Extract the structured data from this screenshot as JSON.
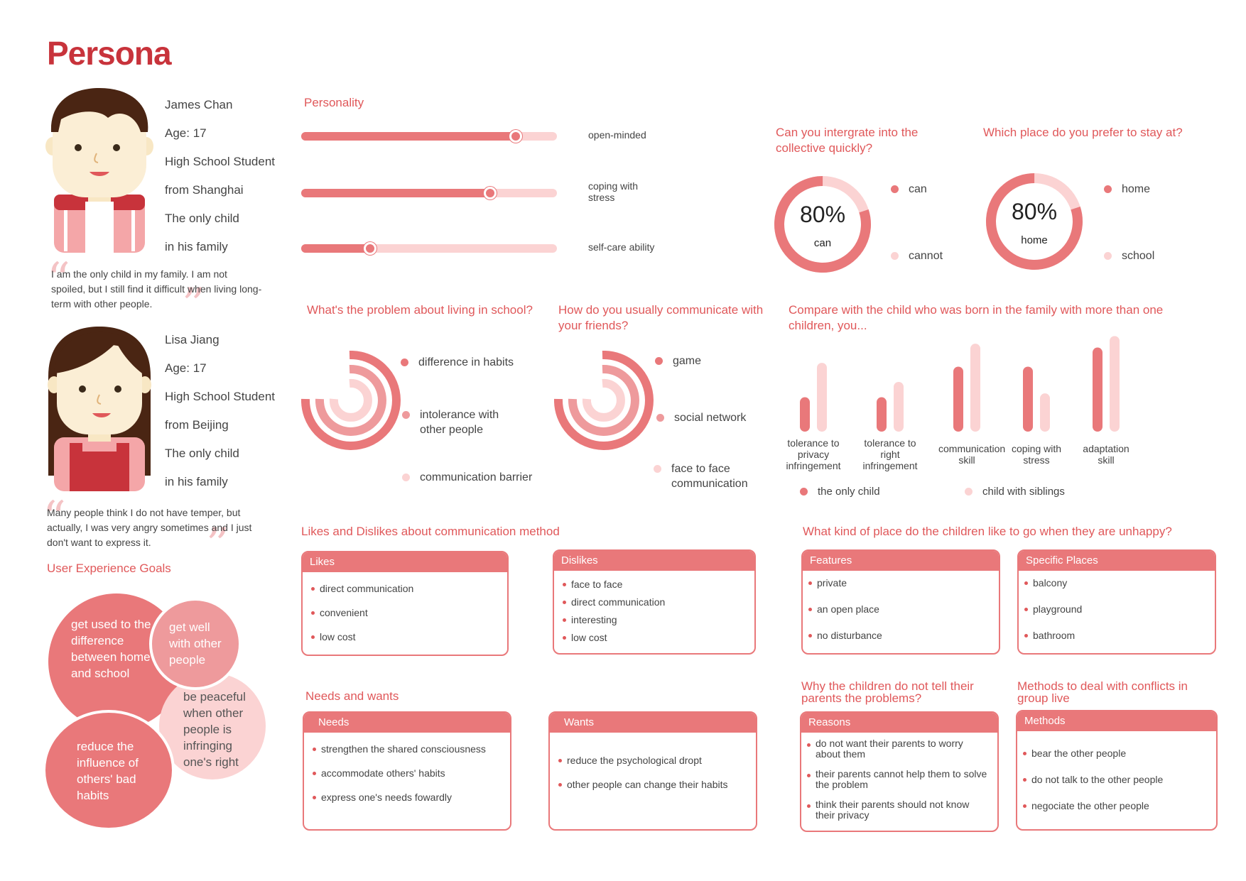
{
  "title": "Persona",
  "colors": {
    "primary": "#e9787a",
    "light": "#fbd3d3",
    "dark": "#c8333b",
    "text": "#444444"
  },
  "personas": [
    {
      "lines": [
        "James Chan",
        "Age: 17",
        "High School Student",
        "from Shanghai",
        "The only child",
        "in his family"
      ],
      "quote": "I am the only child in my family. I am not spoiled, but I still find it difficult when living long-term with other people."
    },
    {
      "lines": [
        "Lisa Jiang",
        "Age: 17",
        "High School Student",
        "from Beijing",
        "The only child",
        "in his family"
      ],
      "quote": "Many people think I do not have temper, but actually, I was very angry sometimes and I just don't want to express it."
    }
  ],
  "ux_goals": {
    "title": "User Experience Goals",
    "bubbles": [
      "get used to the difference between home and school",
      "get well with other people",
      "be peaceful when other people is infringing one's right",
      "reduce the influence of others' bad habits"
    ]
  },
  "personality": {
    "title": "Personality",
    "sliders": [
      {
        "label": "open-minded",
        "value": 0.84
      },
      {
        "label": "coping with stress",
        "value": 0.74
      },
      {
        "label": "self-care ability",
        "value": 0.27
      }
    ]
  },
  "donuts": [
    {
      "question": "Can you intergrate into the collective quickly?",
      "percent": "80%",
      "center_label": "can",
      "legend": [
        "can",
        "cannot"
      ]
    },
    {
      "question": "Which place do you prefer to stay at?",
      "percent": "80%",
      "center_label": "home",
      "legend": [
        "home",
        "school"
      ]
    }
  ],
  "arcs": [
    {
      "question": "What's the problem about living in school?",
      "legend": [
        "difference in habits",
        "intolerance with other people",
        "communication barrier"
      ]
    },
    {
      "question": "How do you usually communicate with your friends?",
      "legend": [
        "game",
        "social network",
        "face to face communication"
      ]
    }
  ],
  "compare": {
    "question": "Compare with the child who was born in the family with more than one children, you...",
    "legend": [
      "the only child",
      "child with siblings"
    ]
  },
  "chart_data": {
    "type": "bar",
    "title": "Compare with the child who was born in the family with more than one children, you...",
    "categories": [
      "tolerance to privacy infringement",
      "tolerance to right infringement",
      "communication skill",
      "coping with stress",
      "adaptation skill"
    ],
    "series": [
      {
        "name": "the only child",
        "values": [
          4.5,
          4.5,
          8.5,
          8.5,
          11
        ]
      },
      {
        "name": "child with siblings",
        "values": [
          9,
          6.5,
          11.5,
          5,
          12.5
        ]
      }
    ],
    "ylim": [
      0,
      13
    ],
    "legend": "bottom"
  },
  "likes_dislikes": {
    "title": "Likes and Dislikes about communication method",
    "likes": {
      "head": "Likes",
      "items": [
        "direct communication",
        "convenient",
        "low cost"
      ]
    },
    "dislikes": {
      "head": "Dislikes",
      "items": [
        "face to face",
        "direct communication",
        "interesting",
        "low cost"
      ]
    }
  },
  "needs_wants": {
    "title": "Needs and wants",
    "needs": {
      "head": "Needs",
      "items": [
        "strengthen the shared consciousness",
        "accommodate others' habits",
        "express one's needs fowardly"
      ]
    },
    "wants": {
      "head": "Wants",
      "items": [
        "reduce the psychological dropt",
        "other people can change their habits"
      ]
    }
  },
  "places": {
    "title": "What kind of place do the children like to go when they are unhappy?",
    "features": {
      "head": "Features",
      "items": [
        "private",
        "an open place",
        "no disturbance"
      ]
    },
    "specific": {
      "head": "Specific Places",
      "items": [
        "balcony",
        "playground",
        "bathroom"
      ]
    }
  },
  "reasons": {
    "title": "Why the children do not tell their parents the problems?",
    "head": "Reasons",
    "items": [
      "do not want their parents to worry about them",
      "their parents cannot help them to solve the problem",
      "think their parents should not know their privacy"
    ]
  },
  "methods": {
    "title": "Methods to deal with conflicts in group live",
    "head": "Methods",
    "items": [
      "bear the other people",
      "do not talk to the other people",
      "negociate the other people"
    ]
  }
}
